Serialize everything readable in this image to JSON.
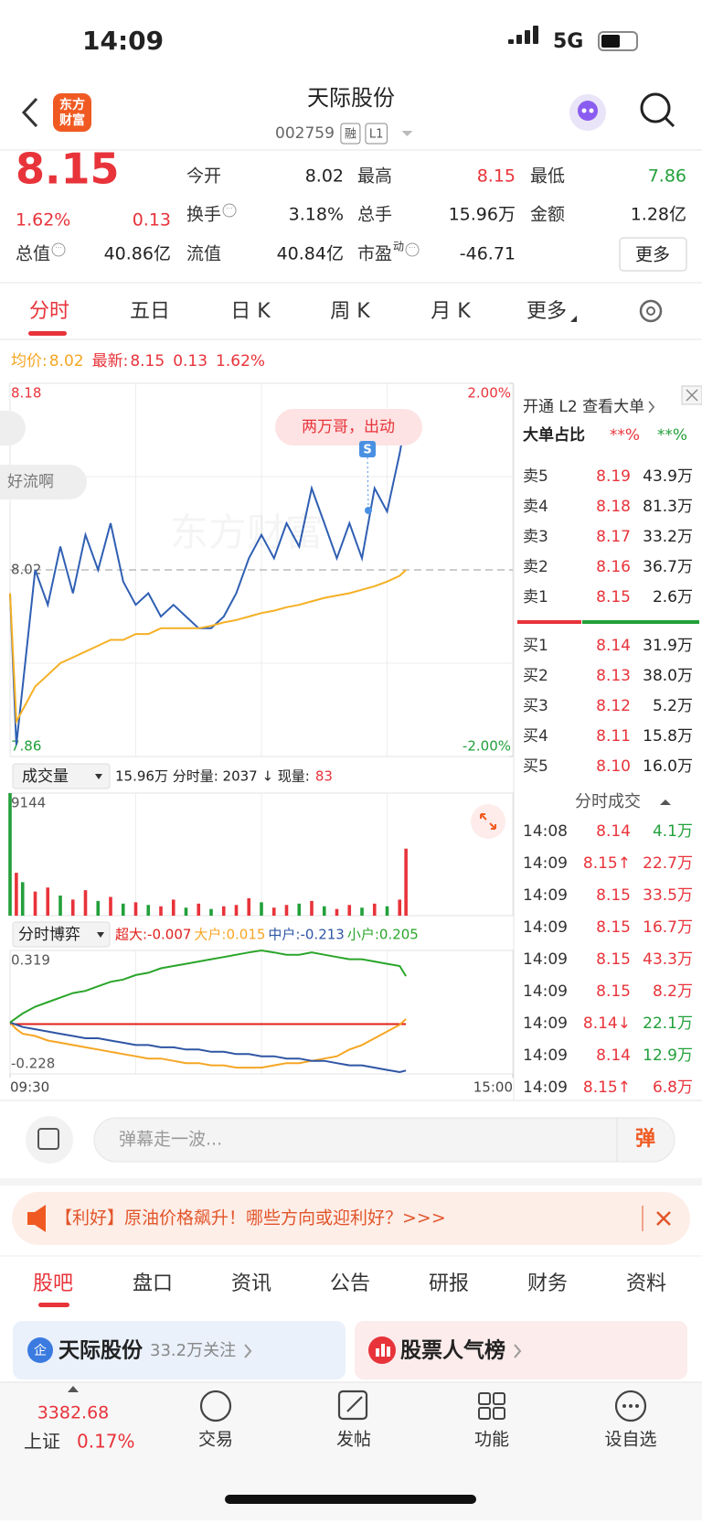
{
  "status_bar": {
    "time": "14:09",
    "network": "5G"
  },
  "header": {
    "logo": [
      "东方",
      "财富"
    ],
    "title": "天际股份",
    "code": "002759",
    "tags": [
      "融",
      "L1"
    ]
  },
  "quote": {
    "price": "8.15",
    "change_pct": "1.62%",
    "change": "0.13",
    "fields": [
      {
        "label": "今开",
        "value": "8.02",
        "color": "#222222"
      },
      {
        "label": "最高",
        "value": "8.15",
        "color": "#e8333a"
      },
      {
        "label": "最低",
        "value": "7.86",
        "color": "#22a03a"
      },
      {
        "label": "换手",
        "value": "3.18%",
        "color": "#222222",
        "info": true
      },
      {
        "label": "总手",
        "value": "15.96万",
        "color": "#222222"
      },
      {
        "label": "金额",
        "value": "1.28亿",
        "color": "#222222"
      },
      {
        "label": "总值",
        "value": "40.86亿",
        "color": "#222222",
        "info": true
      },
      {
        "label": "流值",
        "value": "40.84亿",
        "color": "#222222"
      },
      {
        "label": "市盈",
        "sup": "动",
        "value": "-46.71",
        "color": "#222222",
        "info": true
      }
    ],
    "more": "更多"
  },
  "tabs": [
    "分时",
    "五日",
    "日 K",
    "周 K",
    "月 K",
    "更多"
  ],
  "chart_info": [
    {
      "text": "均价:",
      "color": "#f5a623"
    },
    {
      "text": "8.02",
      "color": "#f5a623"
    },
    {
      "text": "最新:",
      "color": "#e8333a"
    },
    {
      "text": "8.15",
      "color": "#e8333a"
    },
    {
      "text": "0.13",
      "color": "#e8333a"
    },
    {
      "text": "1.62%",
      "color": "#e8333a"
    }
  ],
  "danmaku": [
    "两万哥，出动",
    "好流啊"
  ],
  "signal": "S",
  "watermark": "东方财富",
  "volume_info": {
    "selector": "成交量",
    "summary": "15.96万 分时量: 2037 ↓ 现量:",
    "current": "83"
  },
  "flow_info": {
    "selector": "分时博弈"
  },
  "order_book": {
    "title": "开通 L2 查看大单",
    "ratio_label": "大单占比",
    "ratio_sell": "**%",
    "ratio_buy": "**%",
    "asks": [
      {
        "label": "卖5",
        "price": "8.19",
        "volume": "43.9万"
      },
      {
        "label": "卖4",
        "price": "8.18",
        "volume": "81.3万"
      },
      {
        "label": "卖3",
        "price": "8.17",
        "volume": "33.2万"
      },
      {
        "label": "卖2",
        "price": "8.16",
        "volume": "36.7万"
      },
      {
        "label": "卖1",
        "price": "8.15",
        "volume": "2.6万"
      }
    ],
    "bids": [
      {
        "label": "买1",
        "price": "8.14",
        "volume": "31.9万"
      },
      {
        "label": "买2",
        "price": "8.13",
        "volume": "38.0万"
      },
      {
        "label": "买3",
        "price": "8.12",
        "volume": "5.2万"
      },
      {
        "label": "买4",
        "price": "8.11",
        "volume": "15.8万"
      },
      {
        "label": "买5",
        "price": "8.10",
        "volume": "16.0万"
      }
    ]
  },
  "trades": {
    "title": "分时成交",
    "rows": [
      {
        "time": "14:08",
        "price": "8.14",
        "volume": "4.1万",
        "color": "#22a03a"
      },
      {
        "time": "14:09",
        "price": "8.15↑",
        "volume": "22.7万",
        "color": "#e8333a"
      },
      {
        "time": "14:09",
        "price": "8.15",
        "volume": "33.5万",
        "color": "#e8333a"
      },
      {
        "time": "14:09",
        "price": "8.15",
        "volume": "16.7万",
        "color": "#e8333a"
      },
      {
        "time": "14:09",
        "price": "8.15",
        "volume": "43.3万",
        "color": "#e8333a"
      },
      {
        "time": "14:09",
        "price": "8.15",
        "volume": "8.2万",
        "color": "#e8333a"
      },
      {
        "time": "14:09",
        "price": "8.14↓",
        "volume": "22.1万",
        "color": "#22a03a"
      },
      {
        "time": "14:09",
        "price": "8.14",
        "volume": "12.9万",
        "color": "#22a03a"
      },
      {
        "time": "14:09",
        "price": "8.15↑",
        "volume": "6.8万",
        "color": "#e8333a"
      }
    ]
  },
  "comment_bar": {
    "placeholder": "弹幕走一波...",
    "button": "弹"
  },
  "news": "【利好】原油价格飙升！哪些方向或迎利好？>>>",
  "section_tabs": [
    "股吧",
    "盘口",
    "资讯",
    "公告",
    "研报",
    "财务",
    "资料"
  ],
  "cards": [
    {
      "icon": "企",
      "title": "天际股份",
      "subtitle": "33.2万关注"
    },
    {
      "title": "股票人气榜"
    }
  ],
  "nav": {
    "index_value": "3382.68",
    "index_name": "上证",
    "index_change": "0.17%",
    "items": [
      "交易",
      "发帖",
      "功能",
      "设自选"
    ]
  },
  "chart_data": [
    {
      "type": "line",
      "x": [
        0,
        3,
        6,
        12,
        18,
        24,
        30,
        36,
        42,
        48,
        54,
        60,
        66,
        72,
        78,
        84,
        90,
        96,
        102,
        108,
        114,
        120,
        126,
        132,
        138,
        144,
        150,
        156,
        162,
        168,
        174,
        180,
        186,
        189
      ],
      "xlim": [
        0,
        240
      ],
      "ylim": [
        7.86,
        8.18
      ],
      "yticks": [
        8.18,
        8.02,
        7.86
      ],
      "y2lim": [
        -2,
        2
      ],
      "y2ticks": [
        {
          "value": 2,
          "label": "2.00%"
        },
        {
          "value": -2,
          "label": "-2.00%"
        }
      ],
      "grid": true,
      "series": [
        {
          "color": "#2f5fb3",
          "values": [
            8.0,
            7.87,
            7.92,
            8.02,
            7.99,
            8.04,
            8.0,
            8.05,
            8.02,
            8.06,
            8.01,
            7.99,
            8.0,
            7.98,
            7.99,
            7.98,
            7.97,
            7.97,
            7.98,
            8.0,
            8.03,
            8.05,
            8.03,
            8.06,
            8.04,
            8.09,
            8.06,
            8.03,
            8.06,
            8.03,
            8.09,
            8.07,
            8.12,
            8.15
          ]
        },
        {
          "color": "#f5b025",
          "values": [
            8.0,
            7.89,
            7.9,
            7.92,
            7.93,
            7.94,
            7.945,
            7.95,
            7.955,
            7.96,
            7.96,
            7.965,
            7.965,
            7.97,
            7.97,
            7.97,
            7.97,
            7.972,
            7.975,
            7.977,
            7.98,
            7.983,
            7.985,
            7.988,
            7.99,
            7.993,
            7.996,
            7.998,
            8.0,
            8.003,
            8.006,
            8.01,
            8.015,
            8.02
          ]
        }
      ]
    },
    {
      "type": "bar",
      "x": [
        0,
        3,
        6,
        12,
        18,
        24,
        30,
        36,
        42,
        48,
        54,
        60,
        66,
        72,
        78,
        84,
        90,
        96,
        102,
        108,
        114,
        120,
        126,
        132,
        138,
        144,
        150,
        156,
        162,
        168,
        174,
        180,
        186,
        189
      ],
      "xlim": [
        0,
        240
      ],
      "ylim": [
        0,
        9144
      ],
      "yticks": [
        9144
      ],
      "values": [
        9144,
        3200,
        2500,
        1800,
        2100,
        1500,
        1200,
        1900,
        1100,
        1400,
        900,
        1000,
        800,
        700,
        1200,
        600,
        900,
        500,
        700,
        800,
        1300,
        1000,
        600,
        800,
        900,
        1100,
        700,
        500,
        800,
        600,
        900,
        700,
        1200,
        5000
      ],
      "colors": [
        "#22a03a",
        "#e8333a",
        "#22a03a",
        "#e8333a",
        "#e8333a",
        "#22a03a",
        "#e8333a",
        "#e8333a",
        "#22a03a",
        "#e8333a",
        "#22a03a",
        "#e8333a",
        "#22a03a",
        "#e8333a",
        "#e8333a",
        "#22a03a",
        "#e8333a",
        "#22a03a",
        "#e8333a",
        "#e8333a",
        "#e8333a",
        "#22a03a",
        "#e8333a",
        "#e8333a",
        "#22a03a",
        "#e8333a",
        "#22a03a",
        "#e8333a",
        "#e8333a",
        "#22a03a",
        "#e8333a",
        "#22a03a",
        "#e8333a",
        "#e8333a"
      ]
    },
    {
      "type": "line",
      "x": [
        0,
        3,
        6,
        12,
        18,
        24,
        30,
        36,
        42,
        48,
        54,
        60,
        66,
        72,
        78,
        84,
        90,
        96,
        102,
        108,
        114,
        120,
        126,
        132,
        138,
        144,
        150,
        156,
        162,
        168,
        174,
        180,
        186,
        189
      ],
      "xlim": [
        0,
        240
      ],
      "ylim": [
        -0.228,
        0.319
      ],
      "yticks": [
        0.319,
        -0.228
      ],
      "xticks": [
        {
          "value": 0,
          "label": "09:30"
        },
        {
          "value": 240,
          "label": "15:00"
        }
      ],
      "series": [
        {
          "name": "超大:-0.007",
          "color": "#e0201b",
          "values": [
            -0.007,
            -0.007,
            -0.007,
            -0.007,
            -0.007,
            -0.007,
            -0.007,
            -0.007,
            -0.007,
            -0.007,
            -0.007,
            -0.007,
            -0.007,
            -0.007,
            -0.007,
            -0.007,
            -0.007,
            -0.007,
            -0.007,
            -0.007,
            -0.007,
            -0.007,
            -0.007,
            -0.007,
            -0.007,
            -0.007,
            -0.007,
            -0.007,
            -0.007,
            -0.007,
            -0.007,
            -0.007,
            -0.007,
            -0.007
          ]
        },
        {
          "name": "大户:0.015",
          "color": "#f5a623",
          "values": [
            0.0,
            -0.03,
            -0.05,
            -0.06,
            -0.08,
            -0.09,
            -0.1,
            -0.11,
            -0.12,
            -0.13,
            -0.14,
            -0.15,
            -0.16,
            -0.16,
            -0.17,
            -0.18,
            -0.18,
            -0.19,
            -0.19,
            -0.2,
            -0.2,
            -0.2,
            -0.19,
            -0.18,
            -0.18,
            -0.17,
            -0.16,
            -0.15,
            -0.12,
            -0.1,
            -0.07,
            -0.04,
            -0.01,
            0.015
          ]
        },
        {
          "name": "中户:-0.213",
          "color": "#2f55a4",
          "values": [
            0.0,
            -0.01,
            -0.02,
            -0.03,
            -0.04,
            -0.05,
            -0.06,
            -0.07,
            -0.07,
            -0.08,
            -0.09,
            -0.1,
            -0.1,
            -0.11,
            -0.11,
            -0.12,
            -0.12,
            -0.13,
            -0.13,
            -0.14,
            -0.14,
            -0.15,
            -0.15,
            -0.16,
            -0.16,
            -0.17,
            -0.17,
            -0.18,
            -0.19,
            -0.19,
            -0.2,
            -0.21,
            -0.22,
            -0.213
          ]
        },
        {
          "name": "小户:0.205",
          "color": "#2aa52a",
          "values": [
            0.0,
            0.02,
            0.04,
            0.07,
            0.09,
            0.11,
            0.13,
            0.14,
            0.16,
            0.18,
            0.19,
            0.21,
            0.22,
            0.24,
            0.25,
            0.26,
            0.27,
            0.28,
            0.29,
            0.3,
            0.31,
            0.319,
            0.31,
            0.3,
            0.3,
            0.31,
            0.3,
            0.29,
            0.28,
            0.28,
            0.27,
            0.26,
            0.25,
            0.205
          ]
        }
      ]
    }
  ]
}
